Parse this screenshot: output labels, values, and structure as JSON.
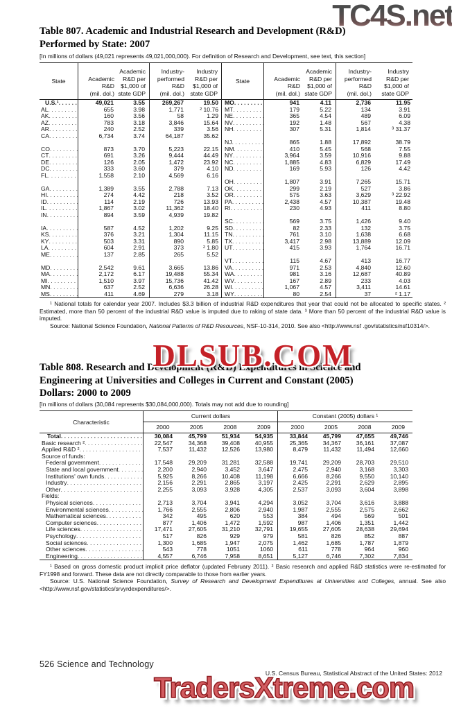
{
  "watermarks": {
    "top": "TC4S.net",
    "middle": "DLSUB.COM",
    "bottom": "TradersXtreme.com"
  },
  "footer": {
    "page_label": "526  Science and Technology",
    "source_line": "U.S. Census Bureau, Statistical Abstract of the United States: 2012"
  },
  "table807": {
    "title_lines": [
      "Table 807. Academic and Industrial Research and Development (R&D)",
      "Performed by State: 2007"
    ],
    "bracket_note": "[In millions of dollars (49,021 represents 49,021,000,000). For definition of Research and Development, see text, this section]",
    "headers": [
      "State",
      "Academic\nR&D\n(mil. dol.)",
      "Academic\nR&D per\n$1,000 of\nstate GDP",
      "Industry-\nperformed\nR&D\n(mil. dol.)",
      "Industry\nR&D per\n$1,000 of\nstate GDP"
    ],
    "rows": [
      {
        "bold": true,
        "l": [
          "U.S.¹",
          "49,021",
          "3.55",
          "269,267",
          "19.50"
        ],
        "r": [
          "MO",
          "941",
          "4.11",
          "2,736",
          "11.95"
        ]
      },
      {
        "l": [
          "AL",
          "655",
          "3.98",
          "1,771",
          "² 10.76"
        ],
        "r": [
          "MT",
          "179",
          "5.22",
          "134",
          "3.91"
        ]
      },
      {
        "l": [
          "AK",
          "160",
          "3.56",
          "58",
          "1.29"
        ],
        "r": [
          "NE",
          "365",
          "4.54",
          "489",
          "6.09"
        ]
      },
      {
        "l": [
          "AZ",
          "783",
          "3.18",
          "3,846",
          "15.64"
        ],
        "r": [
          "NV",
          "192",
          "1.48",
          "567",
          "4.38"
        ]
      },
      {
        "l": [
          "AR",
          "240",
          "2.52",
          "339",
          "3.56"
        ],
        "r": [
          "NH",
          "307",
          "5.31",
          "1,814",
          "³ 31.37"
        ]
      },
      {
        "l": [
          "CA",
          "6,734",
          "3.74",
          "64,187",
          "35.62"
        ],
        "r": null
      },
      {
        "l": null,
        "r": [
          "NJ",
          "865",
          "1.88",
          "17,892",
          "38.79"
        ]
      },
      {
        "l": [
          "CO",
          "873",
          "3.70",
          "5,223",
          "22.15"
        ],
        "r": [
          "NM",
          "410",
          "5.45",
          "568",
          "7.55"
        ]
      },
      {
        "l": [
          "CT",
          "691",
          "3.26",
          "9,444",
          "44.49"
        ],
        "r": [
          "NY",
          "3,964",
          "3.59",
          "10,916",
          "9.88"
        ]
      },
      {
        "l": [
          "DE",
          "126",
          "2.05",
          "1,472",
          "23.92"
        ],
        "r": [
          "NC",
          "1,885",
          "4.83",
          "6,829",
          "17.49"
        ]
      },
      {
        "l": [
          "DC",
          "333",
          "3.60",
          "379",
          "4.10"
        ],
        "r": [
          "ND",
          "169",
          "5.93",
          "126",
          "4.42"
        ]
      },
      {
        "l": [
          "FL",
          "1,558",
          "2.10",
          "4,569",
          "6.16"
        ],
        "r": null
      },
      {
        "l": null,
        "r": [
          "OH",
          "1,807",
          "3.91",
          "7,265",
          "15.71"
        ]
      },
      {
        "l": [
          "GA",
          "1,389",
          "3.55",
          "2,788",
          "7.13"
        ],
        "r": [
          "OK",
          "299",
          "2.19",
          "527",
          "3.86"
        ]
      },
      {
        "l": [
          "HI",
          "274",
          "4.42",
          "218",
          "3.52"
        ],
        "r": [
          "OR",
          "575",
          "3.63",
          "3,629",
          "³ 22.92"
        ]
      },
      {
        "l": [
          "ID",
          "114",
          "2.19",
          "726",
          "13.93"
        ],
        "r": [
          "PA",
          "2,438",
          "4.57",
          "10,387",
          "19.48"
        ]
      },
      {
        "l": [
          "IL",
          "1,867",
          "3.02",
          "11,362",
          "18.40"
        ],
        "r": [
          "RI",
          "230",
          "4.93",
          "411",
          "8.80"
        ]
      },
      {
        "l": [
          "IN",
          "894",
          "3.59",
          "4,939",
          "19.82"
        ],
        "r": null
      },
      {
        "l": null,
        "r": [
          "SC",
          "569",
          "3.75",
          "1,426",
          "9.40"
        ]
      },
      {
        "l": [
          "IA",
          "587",
          "4.52",
          "1,202",
          "9.25"
        ],
        "r": [
          "SD",
          "82",
          "2.33",
          "132",
          "3.75"
        ]
      },
      {
        "l": [
          "KS",
          "376",
          "3.21",
          "1,304",
          "11.15"
        ],
        "r": [
          "TN",
          "761",
          "3.10",
          "1,638",
          "6.68"
        ]
      },
      {
        "l": [
          "KY",
          "503",
          "3.31",
          "890",
          "5.85"
        ],
        "r": [
          "TX",
          "3,417",
          "2.98",
          "13,889",
          "12.09"
        ]
      },
      {
        "l": [
          "LA",
          "604",
          "2.91",
          "373",
          "² 1.80"
        ],
        "r": [
          "UT",
          "415",
          "3.93",
          "1,764",
          "16.71"
        ]
      },
      {
        "l": [
          "ME",
          "137",
          "2.85",
          "265",
          "5.52"
        ],
        "r": null
      },
      {
        "l": null,
        "r": [
          "VT",
          "115",
          "4.67",
          "413",
          "16.77"
        ]
      },
      {
        "l": [
          "MD",
          "2,542",
          "9.61",
          "3,665",
          "13.86"
        ],
        "r": [
          "VA",
          "971",
          "2.53",
          "4,840",
          "12.60"
        ]
      },
      {
        "l": [
          "MA",
          "2,172",
          "6.17",
          "19,488",
          "55.34"
        ],
        "r": [
          "WA",
          "981",
          "3.16",
          "12,687",
          "40.89"
        ]
      },
      {
        "l": [
          "MI",
          "1,510",
          "3.97",
          "15,736",
          "41.42"
        ],
        "r": [
          "WV",
          "167",
          "2.89",
          "233",
          "4.03"
        ]
      },
      {
        "l": [
          "MN",
          "637",
          "2.52",
          "6,636",
          "26.28"
        ],
        "r": [
          "WI",
          "1,067",
          "4.57",
          "3,411",
          "14.61"
        ]
      },
      {
        "l": [
          "MS",
          "411",
          "4.69",
          "279",
          "3.18"
        ],
        "r": [
          "WY",
          "80",
          "2.54",
          "37",
          "² 1.17"
        ]
      }
    ],
    "footnote": "¹ National totals for calendar year 2007.  Includes $3.3 billion of industrial R&D expenditures that year that could not be allocated to specific states. ² Estimated, more than 50 percent of the industrial R&D value is imputed due to raking of state data. ³ More than 50 percent of the industrial R&D value is imputed.",
    "source": {
      "pre": "Source: National Science Foundation, ",
      "italic": "National Patterns of R&D Resources",
      "post": ", NSF-10-314, 2010. See also <http://www.nsf .gov/statistics/nsf10314/>."
    }
  },
  "table808": {
    "title_lines": [
      "Table 808. Research and Development (R&D) Expenditures in Science and",
      "Engineering at Universities and Colleges in Current and Constant (2005)",
      "Dollars: 2000 to 2009"
    ],
    "bracket_note": "[In millions of dollars (30,084 represents $30,084,000,000). Totals may not add due to rounding]",
    "stub_header": "Characteristic",
    "group_headers": [
      "Current dollars",
      "Constant (2005) dollars ¹"
    ],
    "years": [
      "2000",
      "2005",
      "2008",
      "2009"
    ],
    "rows": [
      {
        "label": "Total",
        "bold": true,
        "values": [
          "30,084",
          "45,799",
          "51,934",
          "54,935",
          "33,844",
          "45,799",
          "47,655",
          "49,746"
        ]
      },
      {
        "label": "Basic research ²",
        "values": [
          "22,547",
          "34,368",
          "39,408",
          "40,955",
          "25,365",
          "34,367",
          "36,161",
          "37,087"
        ]
      },
      {
        "label": "Applied R&D ²",
        "values": [
          "7,537",
          "11,432",
          "12,526",
          "13,980",
          "8,479",
          "11,432",
          "11,494",
          "12,660"
        ]
      },
      {
        "label": "Source of funds:",
        "section": true
      },
      {
        "label": "Federal government",
        "indent": true,
        "values": [
          "17,548",
          "29,209",
          "31,281",
          "32,588",
          "19,741",
          "29,209",
          "28,703",
          "29,510"
        ]
      },
      {
        "label": "State and local government",
        "indent": true,
        "values": [
          "2,200",
          "2,940",
          "3,452",
          "3,647",
          "2,475",
          "2,940",
          "3,168",
          "3,303"
        ]
      },
      {
        "label": "Institutions' own funds",
        "indent": true,
        "values": [
          "5,925",
          "8,266",
          "10,408",
          "11,198",
          "6,666",
          "8,266",
          "9,550",
          "10,140"
        ]
      },
      {
        "label": "Industry",
        "indent": true,
        "values": [
          "2,156",
          "2,291",
          "2,865",
          "3,197",
          "2,425",
          "2,291",
          "2,629",
          "2,895"
        ]
      },
      {
        "label": "Other",
        "indent": true,
        "values": [
          "2,255",
          "3,093",
          "3,928",
          "4,305",
          "2,537",
          "3,093",
          "3,604",
          "3,898"
        ]
      },
      {
        "label": "Fields:",
        "section": true
      },
      {
        "label": "Physical sciences",
        "indent": true,
        "values": [
          "2,713",
          "3,704",
          "3,941",
          "4,294",
          "3,052",
          "3,704",
          "3,616",
          "3,888"
        ]
      },
      {
        "label": "Environmental sciences",
        "indent": true,
        "values": [
          "1,766",
          "2,555",
          "2,806",
          "2,940",
          "1,987",
          "2,555",
          "2,575",
          "2,662"
        ]
      },
      {
        "label": "Mathematical sciences",
        "indent": true,
        "values": [
          "342",
          "495",
          "620",
          "553",
          "384",
          "494",
          "569",
          "501"
        ]
      },
      {
        "label": "Computer sciences",
        "indent": true,
        "values": [
          "877",
          "1,406",
          "1,472",
          "1,592",
          "987",
          "1,406",
          "1,351",
          "1,442"
        ]
      },
      {
        "label": "Life sciences",
        "indent": true,
        "values": [
          "17,471",
          "27,605",
          "31,210",
          "32,791",
          "19,655",
          "27,605",
          "28,638",
          "29,694"
        ]
      },
      {
        "label": "Psychology",
        "indent": true,
        "values": [
          "517",
          "826",
          "929",
          "979",
          "581",
          "826",
          "852",
          "887"
        ]
      },
      {
        "label": "Social sciences",
        "indent": true,
        "values": [
          "1,300",
          "1,685",
          "1,947",
          "2,075",
          "1,462",
          "1,685",
          "1,787",
          "1,879"
        ]
      },
      {
        "label": "Other sciences",
        "indent": true,
        "values": [
          "543",
          "778",
          "1051",
          "1060",
          "611",
          "778",
          "964",
          "960"
        ]
      },
      {
        "label": "Engineering",
        "indent": true,
        "values": [
          "4,557",
          "6,746",
          "7,958",
          "8,651",
          "5,127",
          "6,746",
          "7,302",
          "7,834"
        ]
      }
    ],
    "footnote": "¹ Based on gross domestic product implicit price deflator (updated February 2011). ² Basic research and applied R&D statistics were re-estimated for FY1998 and forward. These data are not directly comparable to those from earlier years.",
    "source": {
      "pre": "Source: U.S. National Science Foundation, ",
      "italic": "Survey of Research and Development Expenditures at Universities and Colleges,",
      "post": " annual. See also <http://www.nsf.gov/statistics/srvyrdexpenditures/>."
    }
  }
}
